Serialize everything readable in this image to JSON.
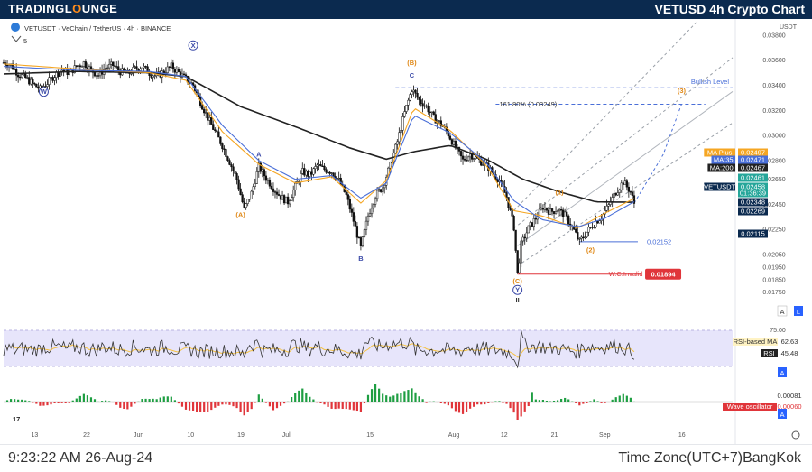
{
  "header": {
    "brand_first": "TRADINGL",
    "brand_o": "O",
    "brand_last": "UNGE",
    "title": "VETUSD 4h Crypto Chart"
  },
  "footer": {
    "timestamp": "9:23:22 AM 26-Aug-24",
    "timezone": "Time Zone(UTC+7)BangKok"
  },
  "chart_header": {
    "symbol_line": "VETUSDT · VeChain  /  TetherUS · 4h · BINANCE",
    "interval_badge": "5"
  },
  "colors": {
    "up": "#26a69a",
    "down": "#ef5350",
    "candle": "#111111",
    "ma35": "#4a6fd8",
    "ma200": "#222222",
    "maplus": "#f5a623",
    "rsi": "#333333",
    "rsi_ma": "#f5c242",
    "rsi_band": "#e7e5fb",
    "wave_pos": "#1e9e42",
    "wave_neg": "#e0353a",
    "fib": "#4a6fd8",
    "invalid": "#e0353a"
  },
  "chart_data": {
    "type": "line",
    "title": "VETUSDT · VeChain / TetherUS · 4h · BINANCE",
    "yscale": "linear",
    "ylim": [
      0.0164,
      0.039
    ],
    "y_ticks": [
      "0.03800",
      "0.03600",
      "0.03400",
      "0.03200",
      "0.03000",
      "0.02800",
      "0.02650",
      "0.02450",
      "0.02250",
      "0.02050",
      "0.01950",
      "0.01850",
      "0.01750"
    ],
    "y_axis_unit": "USDT",
    "x_ticks": [
      "13",
      "22",
      "Jun",
      "10",
      "19",
      "Jul",
      "15",
      "Aug",
      "12",
      "21",
      "Sep",
      "16"
    ],
    "price_series": [
      [
        0,
        0.0358
      ],
      [
        4,
        0.0356
      ],
      [
        8,
        0.0349
      ],
      [
        12,
        0.0346
      ],
      [
        16,
        0.0341
      ],
      [
        20,
        0.0337
      ],
      [
        24,
        0.0342
      ],
      [
        28,
        0.0348
      ],
      [
        32,
        0.0352
      ],
      [
        36,
        0.035
      ],
      [
        40,
        0.0355
      ],
      [
        44,
        0.0358
      ],
      [
        48,
        0.0352
      ],
      [
        52,
        0.0348
      ],
      [
        56,
        0.0354
      ],
      [
        60,
        0.0356
      ],
      [
        64,
        0.0351
      ],
      [
        68,
        0.0349
      ],
      [
        72,
        0.0353
      ],
      [
        76,
        0.0355
      ],
      [
        80,
        0.035
      ],
      [
        84,
        0.0347
      ],
      [
        88,
        0.0351
      ],
      [
        92,
        0.0355
      ],
      [
        96,
        0.035
      ],
      [
        100,
        0.0345
      ],
      [
        104,
        0.034
      ],
      [
        108,
        0.0327
      ],
      [
        112,
        0.0314
      ],
      [
        116,
        0.0303
      ],
      [
        120,
        0.0292
      ],
      [
        124,
        0.0279
      ],
      [
        128,
        0.0265
      ],
      [
        132,
        0.0241
      ],
      [
        136,
        0.0254
      ],
      [
        140,
        0.0275
      ],
      [
        144,
        0.0266
      ],
      [
        148,
        0.0258
      ],
      [
        152,
        0.0251
      ],
      [
        156,
        0.0247
      ],
      [
        160,
        0.0259
      ],
      [
        164,
        0.0271
      ],
      [
        168,
        0.0268
      ],
      [
        172,
        0.0276
      ],
      [
        176,
        0.0273
      ],
      [
        180,
        0.0271
      ],
      [
        184,
        0.0264
      ],
      [
        188,
        0.0252
      ],
      [
        192,
        0.0232
      ],
      [
        196,
        0.021
      ],
      [
        200,
        0.0236
      ],
      [
        204,
        0.0252
      ],
      [
        208,
        0.0259
      ],
      [
        212,
        0.0276
      ],
      [
        216,
        0.0295
      ],
      [
        220,
        0.0318
      ],
      [
        224,
        0.0337
      ],
      [
        228,
        0.0328
      ],
      [
        232,
        0.0323
      ],
      [
        236,
        0.0314
      ],
      [
        240,
        0.0309
      ],
      [
        244,
        0.0301
      ],
      [
        248,
        0.029
      ],
      [
        252,
        0.028
      ],
      [
        256,
        0.0285
      ],
      [
        260,
        0.0281
      ],
      [
        264,
        0.0277
      ],
      [
        268,
        0.0271
      ],
      [
        272,
        0.0264
      ],
      [
        276,
        0.0251
      ],
      [
        280,
        0.0227
      ],
      [
        282,
        0.01894
      ],
      [
        284,
        0.0213
      ],
      [
        288,
        0.0226
      ],
      [
        292,
        0.0234
      ],
      [
        296,
        0.0243
      ],
      [
        300,
        0.0239
      ],
      [
        304,
        0.0241
      ],
      [
        308,
        0.0236
      ],
      [
        312,
        0.0227
      ],
      [
        316,
        0.02152
      ],
      [
        320,
        0.0223
      ],
      [
        324,
        0.023
      ],
      [
        328,
        0.0235
      ],
      [
        332,
        0.0244
      ],
      [
        336,
        0.0255
      ],
      [
        340,
        0.0263
      ],
      [
        344,
        0.0255
      ],
      [
        346,
        0.02458
      ]
    ],
    "ma35_series": [
      [
        0,
        0.0355
      ],
      [
        40,
        0.0352
      ],
      [
        80,
        0.0351
      ],
      [
        100,
        0.0347
      ],
      [
        120,
        0.0308
      ],
      [
        140,
        0.028
      ],
      [
        160,
        0.0265
      ],
      [
        180,
        0.0268
      ],
      [
        196,
        0.025
      ],
      [
        210,
        0.0262
      ],
      [
        225,
        0.0316
      ],
      [
        245,
        0.0302
      ],
      [
        265,
        0.0278
      ],
      [
        280,
        0.0248
      ],
      [
        295,
        0.0233
      ],
      [
        315,
        0.0227
      ],
      [
        330,
        0.0234
      ],
      [
        346,
        0.02471
      ]
    ],
    "ma200_series": [
      [
        0,
        0.0349
      ],
      [
        40,
        0.0351
      ],
      [
        80,
        0.035
      ],
      [
        100,
        0.0347
      ],
      [
        130,
        0.0323
      ],
      [
        160,
        0.0307
      ],
      [
        190,
        0.029
      ],
      [
        210,
        0.0281
      ],
      [
        225,
        0.0287
      ],
      [
        245,
        0.0292
      ],
      [
        265,
        0.0281
      ],
      [
        285,
        0.0265
      ],
      [
        305,
        0.0255
      ],
      [
        325,
        0.0247
      ],
      [
        346,
        0.02467
      ]
    ],
    "maplus_series": [
      [
        0,
        0.0357
      ],
      [
        40,
        0.0353
      ],
      [
        80,
        0.035
      ],
      [
        100,
        0.0344
      ],
      [
        120,
        0.0303
      ],
      [
        140,
        0.0277
      ],
      [
        160,
        0.0262
      ],
      [
        180,
        0.0267
      ],
      [
        196,
        0.0246
      ],
      [
        210,
        0.0264
      ],
      [
        225,
        0.0322
      ],
      [
        245,
        0.0304
      ],
      [
        265,
        0.0276
      ],
      [
        280,
        0.024
      ],
      [
        295,
        0.0236
      ],
      [
        315,
        0.0226
      ],
      [
        330,
        0.0238
      ],
      [
        346,
        0.02497
      ]
    ],
    "horizontal_levels": [
      {
        "name": "Bullish Level",
        "value": 0.0338
      },
      {
        "name": "161.80% (0.03249)",
        "value": 0.03249
      },
      {
        "name": "0.02152",
        "value": 0.02152
      },
      {
        "name": "W.C.Invalid",
        "value": 0.01894
      }
    ],
    "price_tags": [
      {
        "label": "MA Plus",
        "value": "0.02497",
        "color": "#f5a623"
      },
      {
        "label": "MA:35",
        "value": "0.02471",
        "color": "#4a6fd8"
      },
      {
        "label": "MA:200",
        "value": "0.02467",
        "color": "#222222"
      },
      {
        "label": "",
        "value": "0.02461",
        "color": "#26a69a"
      },
      {
        "label": "VETUSDT",
        "value": "0.02458",
        "color": "#26a69a"
      },
      {
        "label": "",
        "value": "01:36:39",
        "color": "#26a69a"
      },
      {
        "label": "",
        "value": "0.02348",
        "color": "#0b2a4f"
      },
      {
        "label": "",
        "value": "0.02269",
        "color": "#0b2a4f"
      },
      {
        "label": "",
        "value": "0.02115",
        "color": "#0b2a4f"
      }
    ],
    "wave_labels": [
      {
        "text": "W",
        "i": 22,
        "v": 0.0333,
        "color": "#3b4aa8",
        "circle": true
      },
      {
        "text": "X",
        "i": 104,
        "v": 0.037,
        "color": "#3b4aa8",
        "circle": true
      },
      {
        "text": "A",
        "i": 140,
        "v": 0.0283,
        "color": "#3b4aa8"
      },
      {
        "text": "(A)",
        "i": 130,
        "v": 0.0235,
        "color": "#e08a1a"
      },
      {
        "text": "B",
        "i": 196,
        "v": 0.02,
        "color": "#3b4aa8"
      },
      {
        "text": "(B)",
        "i": 224,
        "v": 0.0356,
        "color": "#e08a1a"
      },
      {
        "text": "C",
        "i": 224,
        "v": 0.0346,
        "color": "#3b4aa8"
      },
      {
        "text": "(1)",
        "i": 305,
        "v": 0.0253,
        "color": "#e08a1a"
      },
      {
        "text": "(2)",
        "i": 322,
        "v": 0.0207,
        "color": "#e08a1a"
      },
      {
        "text": "(C)",
        "i": 282,
        "v": 0.0182,
        "color": "#e08a1a"
      },
      {
        "text": "Y",
        "i": 282,
        "v": 0.0175,
        "color": "#3b4aa8",
        "circle": true
      },
      {
        "text": "II",
        "i": 282,
        "v": 0.0167,
        "color": "#333333"
      },
      {
        "text": "(3)",
        "i": 372,
        "v": 0.0334,
        "color": "#e08a1a"
      }
    ],
    "rsi": {
      "name": "RSI",
      "value": "45.48",
      "ma_name": "RSI-based MA",
      "ma_value": "62.63",
      "upper": "75.00"
    },
    "wave_oscillator": {
      "name": "Wave oscillator",
      "values": [
        "0.00081",
        "0.00060"
      ]
    }
  }
}
